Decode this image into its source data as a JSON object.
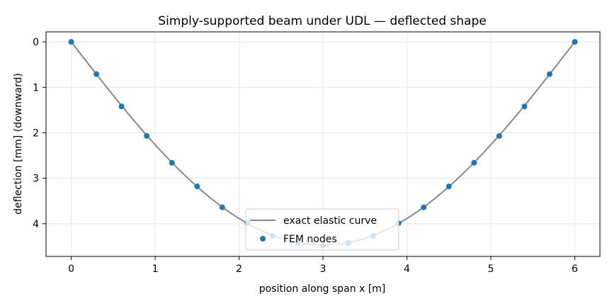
{
  "chart_data": {
    "type": "line",
    "title": "Simply-supported beam under UDL — deflected shape",
    "xlabel": "position along span  x [m]",
    "ylabel": "deflection [mm]  (downward)",
    "xlim": [
      -0.3,
      6.3
    ],
    "ylim": [
      4.72,
      -0.22
    ],
    "y_inverted": true,
    "xticks": [
      0,
      1,
      2,
      3,
      4,
      5,
      6
    ],
    "yticks": [
      0,
      1,
      2,
      3,
      4
    ],
    "grid": true,
    "legend_position": "lower-center",
    "series": [
      {
        "name": "exact elastic curve",
        "kind": "line",
        "color": "#888888",
        "x": [
          0,
          0.3,
          0.6,
          0.9,
          1.2,
          1.5,
          1.8,
          2.1,
          2.4,
          2.7,
          3.0,
          3.3,
          3.6,
          3.9,
          4.2,
          4.5,
          4.8,
          5.1,
          5.4,
          5.7,
          6.0
        ],
        "y": [
          0,
          0.71,
          1.4,
          2.05,
          2.64,
          3.17,
          3.62,
          3.98,
          4.25,
          4.42,
          4.47,
          4.42,
          4.25,
          3.98,
          3.62,
          3.17,
          2.64,
          2.05,
          1.4,
          0.71,
          0
        ]
      },
      {
        "name": "FEM nodes",
        "kind": "scatter",
        "color": "#1f77b4",
        "x": [
          0,
          0.3,
          0.6,
          0.9,
          1.2,
          1.5,
          1.8,
          2.1,
          2.4,
          2.7,
          3.0,
          3.3,
          3.6,
          3.9,
          4.2,
          4.5,
          4.8,
          5.1,
          5.4,
          5.7,
          6.0
        ],
        "y": [
          0,
          0.71,
          1.42,
          2.07,
          2.66,
          3.18,
          3.64,
          3.99,
          4.27,
          4.43,
          4.48,
          4.43,
          4.27,
          3.99,
          3.64,
          3.18,
          2.66,
          2.07,
          1.42,
          0.71,
          0
        ]
      }
    ]
  }
}
